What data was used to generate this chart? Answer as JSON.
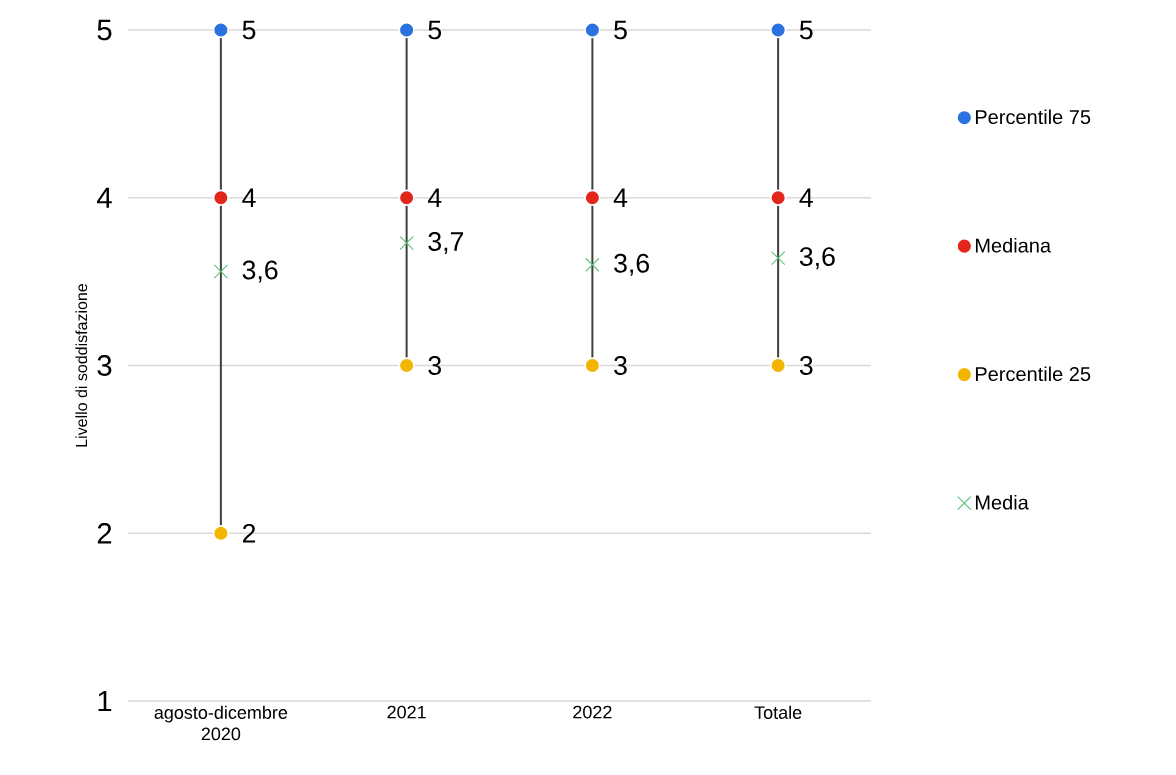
{
  "chart_data": {
    "type": "scatter",
    "ylabel": "Livello di soddisfazione",
    "categories": [
      "agosto-dicembre 2020",
      "2021",
      "2022",
      "Totale"
    ],
    "ylim": [
      1,
      5
    ],
    "yticks": [
      1,
      2,
      3,
      4,
      5
    ],
    "grid": "y",
    "legend": "right",
    "series": [
      {
        "name": "Percentile 75",
        "color": "#2a72e0",
        "marker": "circle",
        "values": [
          5,
          5,
          5,
          5
        ],
        "value_labels": [
          "5",
          "5",
          "5",
          "5"
        ]
      },
      {
        "name": "Mediana",
        "color": "#e3261b",
        "marker": "circle",
        "values": [
          4,
          4,
          4,
          4
        ],
        "value_labels": [
          "4",
          "4",
          "4",
          "4"
        ]
      },
      {
        "name": "Percentile 25",
        "color": "#f2b600",
        "marker": "circle",
        "values": [
          2,
          3,
          3,
          3
        ],
        "value_labels": [
          "2",
          "3",
          "3",
          "3"
        ]
      },
      {
        "name": "Media",
        "color": "#5cbf7a",
        "marker": "cross",
        "values": [
          3.56,
          3.73,
          3.6,
          3.64
        ],
        "value_labels": [
          "3,6",
          "3,7",
          "3,6",
          "3,6"
        ]
      }
    ]
  }
}
